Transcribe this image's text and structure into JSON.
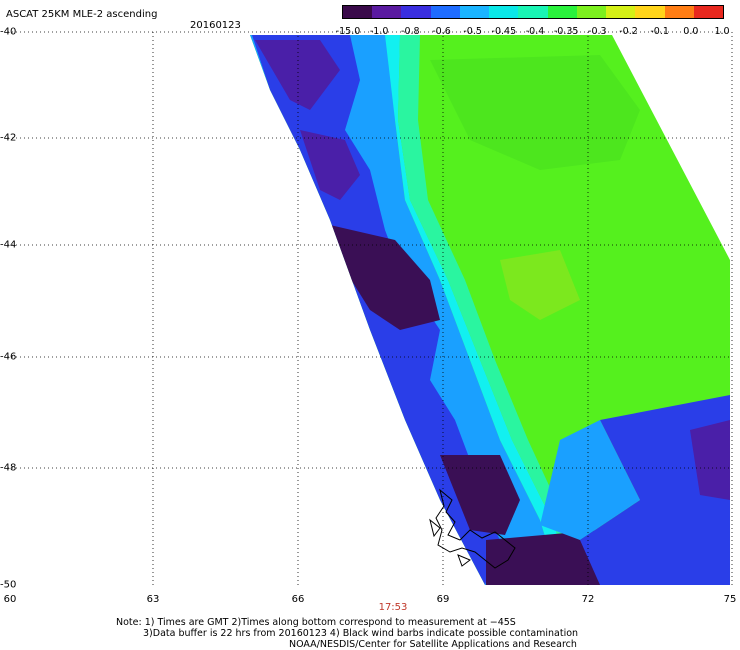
{
  "header": {
    "title": "ASCAT 25KM MLE-2 ascending",
    "date": "20160123"
  },
  "colorbar": {
    "labels": [
      "-15.0",
      "-1.0",
      "-0.8",
      "-0.6",
      "-0.5",
      "-0.45",
      "-0.4",
      "-0.35",
      "-0.3",
      "-0.2",
      "-0.1",
      "0.0",
      "1.0"
    ],
    "colors": [
      "#3a0a4a",
      "#5a1aa0",
      "#3a2ee0",
      "#1e6cff",
      "#1ab4ff",
      "#0ae8e8",
      "#19f5b4",
      "#2af23c",
      "#7cf01e",
      "#d4f016",
      "#ffd41a",
      "#ff7d14",
      "#e8281e"
    ]
  },
  "map": {
    "y_ticks": [
      "-40",
      "-42",
      "-44",
      "-46",
      "-48",
      "-50"
    ],
    "x_ticks": [
      "60",
      "63",
      "66",
      "69",
      "72",
      "75"
    ],
    "time_label": "17:53",
    "palette": {
      "dark_purple": "#3a0f55",
      "purple": "#4a1fa8",
      "blue": "#2a3ee8",
      "light_blue": "#1aa0ff",
      "cyan": "#12f0f0",
      "aqua_green": "#2af5a0",
      "green": "#55f01e",
      "yellow_green": "#8cf01e"
    }
  },
  "notes": {
    "line1": "Note: 1) Times are GMT 2)Times along bottom correspond to measurement at −45S",
    "line2": "3)Data buffer is 22 hrs from 20160123 4) Black wind barbs indicate possible contamination",
    "line3": "NOAA/NESDIS/Center for Satellite Applications and Research"
  }
}
